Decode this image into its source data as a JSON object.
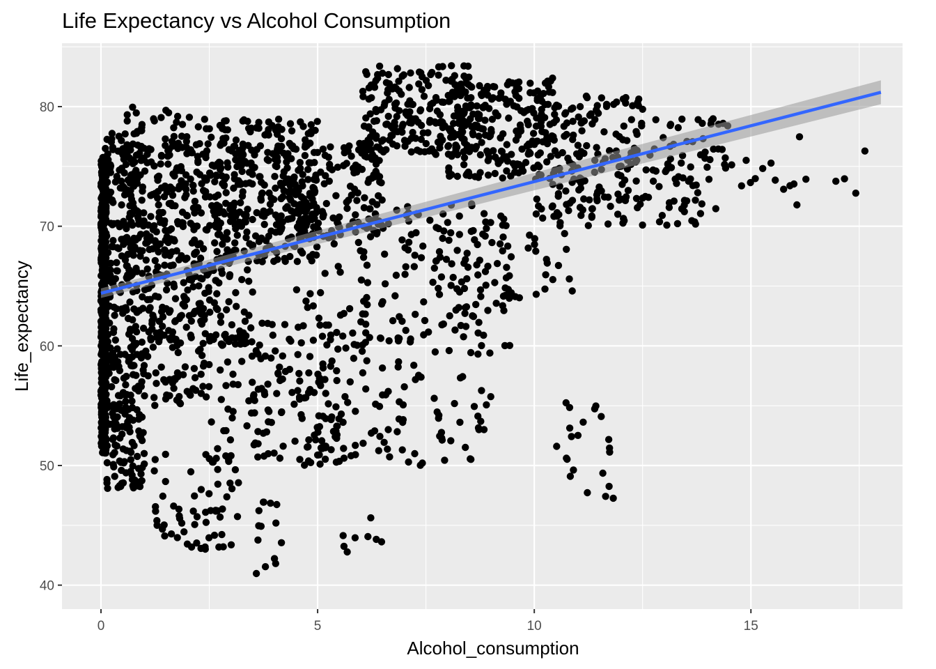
{
  "chart_data": {
    "type": "scatter",
    "title": "Life Expectancy vs Alcohol Consumption",
    "xlabel": "Alcohol_consumption",
    "ylabel": "Life_expectancy",
    "xlim": [
      -0.9,
      18.5
    ],
    "ylim": [
      38.0,
      85.3
    ],
    "x_ticks": [
      0,
      5,
      10,
      15
    ],
    "y_ticks": [
      40,
      50,
      60,
      70,
      80
    ],
    "grid": true,
    "legend": "none",
    "point_color": "#000000",
    "trend": {
      "method": "linear regression with confidence band",
      "color": "#3366ff",
      "band_color": "#999999",
      "x": [
        0,
        18
      ],
      "y": [
        64.4,
        81.2
      ],
      "band_lower": [
        64.0,
        80.2
      ],
      "band_upper": [
        64.8,
        82.2
      ]
    },
    "clusters": [
      {
        "x": [
          0,
          0.12
        ],
        "y": [
          51,
          75.8
        ],
        "n": 520
      },
      {
        "x": [
          0.1,
          1.0
        ],
        "y": [
          48,
          78
        ],
        "n": 320
      },
      {
        "x": [
          0.6,
          2.5
        ],
        "y": [
          55,
          80
        ],
        "n": 280
      },
      {
        "x": [
          1.0,
          3.5
        ],
        "y": [
          60,
          77
        ],
        "n": 220
      },
      {
        "x": [
          2.5,
          5.0
        ],
        "y": [
          67,
          79
        ],
        "n": 260
      },
      {
        "x": [
          4.0,
          6.5
        ],
        "y": [
          69,
          77
        ],
        "n": 180
      },
      {
        "x": [
          6.0,
          8.5
        ],
        "y": [
          76,
          83.5
        ],
        "n": 200
      },
      {
        "x": [
          8.0,
          10.5
        ],
        "y": [
          74,
          82.5
        ],
        "n": 220
      },
      {
        "x": [
          10.0,
          12.5
        ],
        "y": [
          70,
          81
        ],
        "n": 170
      },
      {
        "x": [
          12.0,
          14.5
        ],
        "y": [
          70,
          79
        ],
        "n": 90
      },
      {
        "x": [
          4.5,
          9.5
        ],
        "y": [
          60,
          72
        ],
        "n": 140
      },
      {
        "x": [
          7.0,
          11.0
        ],
        "y": [
          64,
          71
        ],
        "n": 60
      },
      {
        "x": [
          2.5,
          5.5
        ],
        "y": [
          50,
          62
        ],
        "n": 150
      },
      {
        "x": [
          5.0,
          9.0
        ],
        "y": [
          50,
          62
        ],
        "n": 120
      },
      {
        "x": [
          1.2,
          3.2
        ],
        "y": [
          43,
          51
        ],
        "n": 60
      },
      {
        "x": [
          3.5,
          4.2
        ],
        "y": [
          40,
          47
        ],
        "n": 14
      },
      {
        "x": [
          5.5,
          6.5
        ],
        "y": [
          42.5,
          46
        ],
        "n": 8
      },
      {
        "x": [
          10.5,
          11.9
        ],
        "y": [
          46.2,
          56
        ],
        "n": 22
      },
      {
        "x": [
          14.5,
          17.9
        ],
        "y": [
          70.5,
          77.7
        ],
        "n": 18
      }
    ]
  }
}
